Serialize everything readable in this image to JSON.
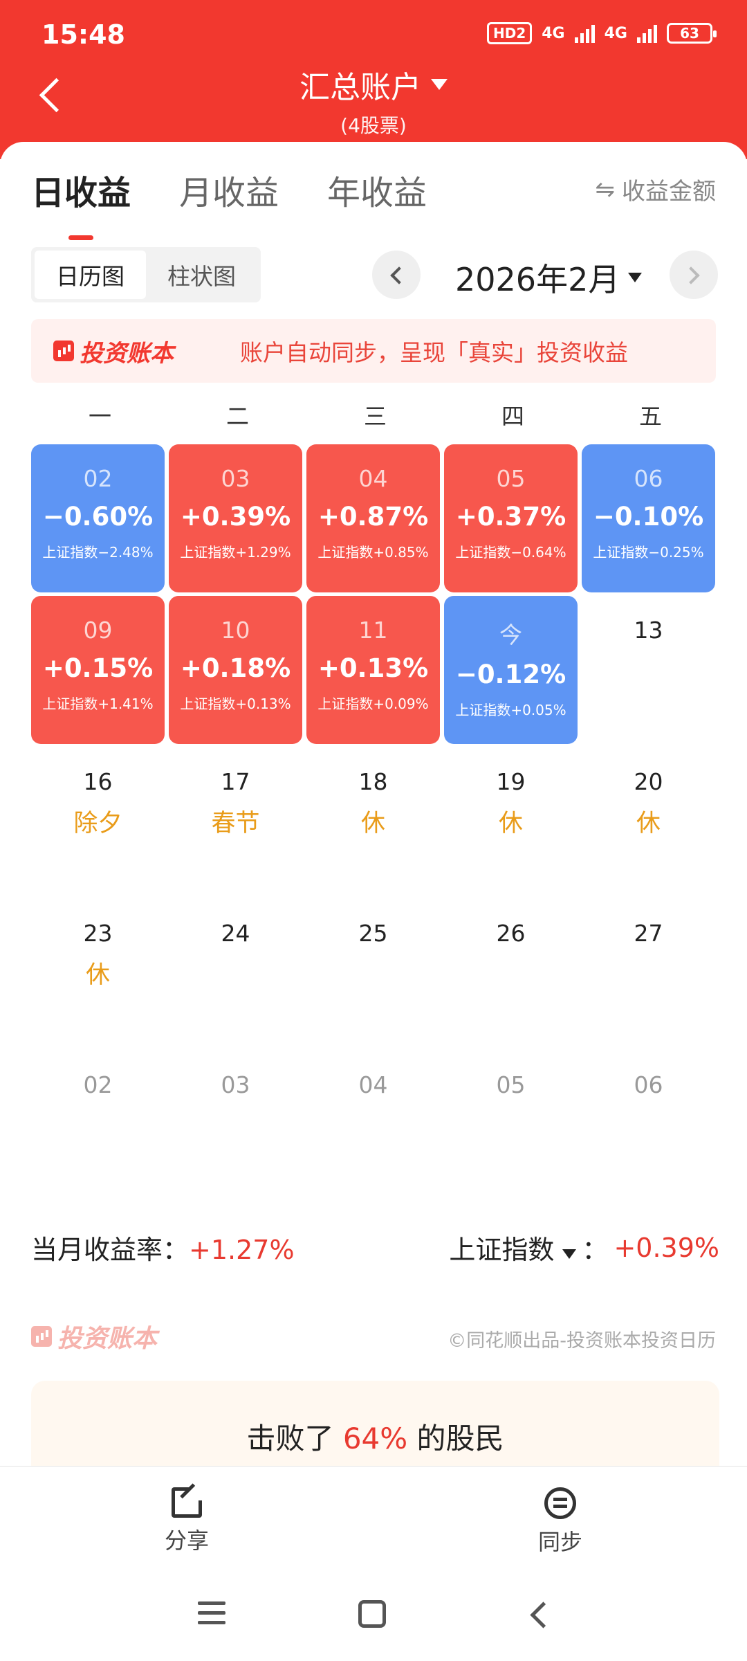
{
  "status": {
    "time": "15:48",
    "hd": "HD2",
    "net1": "4G",
    "net2": "4G",
    "battery": "63"
  },
  "header": {
    "title": "汇总账户",
    "subtitle": "(4股票)"
  },
  "tabs": [
    {
      "label": "日收益",
      "active": true
    },
    {
      "label": "月收益",
      "active": false
    },
    {
      "label": "年收益",
      "active": false
    }
  ],
  "toggle_amount": {
    "icon": "swap-icon",
    "label": "收益金额"
  },
  "view_switch": [
    {
      "label": "日历图",
      "active": true
    },
    {
      "label": "柱状图",
      "active": false
    }
  ],
  "month": {
    "label": "2026年2月"
  },
  "banner": {
    "brand": "投资账本",
    "text": "账户自动同步，呈现「真实」投资收益"
  },
  "weekdays": [
    "一",
    "二",
    "三",
    "四",
    "五"
  ],
  "colors": {
    "gain": "#f7574d",
    "loss": "#5e95f4",
    "holiday": "#e99c1a",
    "brand": "#f2382f"
  },
  "days": [
    {
      "num": "02",
      "pct": "−0.60%",
      "idx": "上证指数−2.48%",
      "kind": "blue"
    },
    {
      "num": "03",
      "pct": "+0.39%",
      "idx": "上证指数+1.29%",
      "kind": "red"
    },
    {
      "num": "04",
      "pct": "+0.87%",
      "idx": "上证指数+0.85%",
      "kind": "red"
    },
    {
      "num": "05",
      "pct": "+0.37%",
      "idx": "上证指数−0.64%",
      "kind": "red"
    },
    {
      "num": "06",
      "pct": "−0.10%",
      "idx": "上证指数−0.25%",
      "kind": "blue"
    },
    {
      "num": "09",
      "pct": "+0.15%",
      "idx": "上证指数+1.41%",
      "kind": "red"
    },
    {
      "num": "10",
      "pct": "+0.18%",
      "idx": "上证指数+0.13%",
      "kind": "red"
    },
    {
      "num": "11",
      "pct": "+0.13%",
      "idx": "上证指数+0.09%",
      "kind": "red"
    },
    {
      "num": "今",
      "pct": "−0.12%",
      "idx": "上证指数+0.05%",
      "kind": "blue"
    },
    {
      "num": "13",
      "kind": "plain"
    },
    {
      "num": "16",
      "holiday": "除夕",
      "kind": "plain"
    },
    {
      "num": "17",
      "holiday": "春节",
      "kind": "plain"
    },
    {
      "num": "18",
      "holiday": "休",
      "kind": "plain"
    },
    {
      "num": "19",
      "holiday": "休",
      "kind": "plain"
    },
    {
      "num": "20",
      "holiday": "休",
      "kind": "plain"
    },
    {
      "num": "23",
      "holiday": "休",
      "kind": "plain"
    },
    {
      "num": "24",
      "kind": "plain"
    },
    {
      "num": "25",
      "kind": "plain"
    },
    {
      "num": "26",
      "kind": "plain"
    },
    {
      "num": "27",
      "kind": "plain"
    },
    {
      "num": "02",
      "kind": "faded"
    },
    {
      "num": "03",
      "kind": "faded"
    },
    {
      "num": "04",
      "kind": "faded"
    },
    {
      "num": "05",
      "kind": "faded"
    },
    {
      "num": "06",
      "kind": "faded"
    }
  ],
  "summary": {
    "month_label": "当月收益率：",
    "month_value": "+1.27%",
    "index_label": "上证指数",
    "index_colon": "：",
    "index_value": "+0.39%"
  },
  "footer": {
    "brand": "投资账本",
    "credit": "©同花顺出品-投资账本投资日历"
  },
  "beat": {
    "prefix": "击败了",
    "value": "64%",
    "suffix": "的股民"
  },
  "actions": [
    {
      "label": "分享",
      "icon": "share-icon"
    },
    {
      "label": "同步",
      "icon": "sync-icon"
    }
  ]
}
